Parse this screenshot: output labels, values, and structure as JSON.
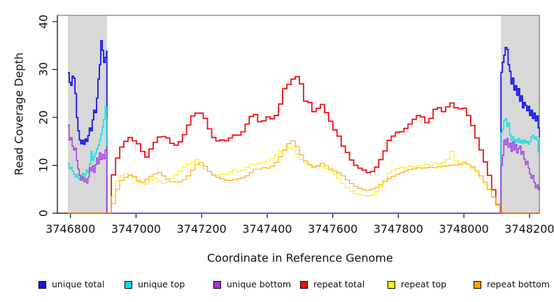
{
  "chart_data": {
    "type": "line",
    "title": "",
    "xlabel": "Coordinate in Reference Genome",
    "ylabel": "Read Coverage Depth",
    "xlim": [
      3746760,
      3748230
    ],
    "ylim": [
      0,
      41.3
    ],
    "x_ticks": [
      3746800,
      3747000,
      3747200,
      3747400,
      3747600,
      3747800,
      3748000,
      3748200
    ],
    "y_ticks": [
      0,
      10,
      20,
      30,
      40
    ],
    "grid": false,
    "legend_position": "bottom",
    "shading_color": "#d8d8d8",
    "shaded_regions": [
      {
        "x0": 3746792,
        "x1": 3746911
      },
      {
        "x0": 3748113,
        "x1": 3748232
      }
    ],
    "series": [
      {
        "name": "unique total",
        "color": "#1414ee",
        "line_width": 1.8,
        "segments": [
          {
            "x0": 3746792,
            "x1": 3746910,
            "values": [
              29.3,
              27.3,
              26.7,
              28.6,
              28.2,
              25.0,
              20.0,
              17.2,
              15.3,
              14.5,
              15.2,
              14.4,
              15.5,
              15.0,
              16.2,
              17.8,
              17.2,
              19.5,
              21.5,
              21.0,
              24.0,
              28.0,
              31.0,
              36.0,
              34.0,
              31.5,
              32.5,
              33.8
            ]
          },
          {
            "x0": 3746911,
            "x1": 3748112,
            "values": [
              0,
              0
            ]
          },
          {
            "x0": 3748113,
            "x1": 3748231,
            "values": [
              29.4,
              31.5,
              33.0,
              34.6,
              34.2,
              31.0,
              29.6,
              27.0,
              28.2,
              25.7,
              26.6,
              24.6,
              26.0,
              23.4,
              24.5,
              22.0,
              23.1,
              22.5,
              21.4,
              22.3,
              20.4,
              21.5,
              19.8,
              20.9,
              19.3,
              20.3,
              17.8,
              15.8
            ]
          }
        ]
      },
      {
        "name": "unique top",
        "color": "#00e0e6",
        "line_width": 1.4,
        "segments": [
          {
            "x0": 3746792,
            "x1": 3746910,
            "values": [
              10.4,
              9.3,
              9.6,
              8.8,
              8.2,
              7.6,
              8.1,
              7.4,
              7.0,
              7.6,
              8.3,
              7.5,
              8.2,
              9.0,
              8.5,
              10.3,
              12.9,
              11.0,
              11.8,
              12.5,
              13.4,
              14.2,
              15.2,
              16.5,
              18.0,
              19.6,
              22.3,
              20.0
            ]
          },
          {
            "x0": 3746911,
            "x1": 3748112,
            "values": [
              0,
              0
            ]
          },
          {
            "x0": 3748113,
            "x1": 3748231,
            "values": [
              16.9,
              17.5,
              19.3,
              19.7,
              18.1,
              18.8,
              16.4,
              15.2,
              16.0,
              14.7,
              15.4,
              14.9,
              15.6,
              14.7,
              15.2,
              14.6,
              15.3,
              14.7,
              15.0,
              14.4,
              15.0,
              15.9,
              16.3,
              15.5,
              15.9,
              15.2,
              13.0,
              11.8
            ]
          }
        ]
      },
      {
        "name": "unique bottom",
        "color": "#a135e0",
        "line_width": 1.4,
        "segments": [
          {
            "x0": 3746792,
            "x1": 3746910,
            "values": [
              18.4,
              15.3,
              15.8,
              14.0,
              13.2,
              13.6,
              11.0,
              9.2,
              7.9,
              6.9,
              7.5,
              6.6,
              7.2,
              6.3,
              7.5,
              9.5,
              8.8,
              9.9,
              8.5,
              10.1,
              11.5,
              10.3,
              12.6,
              11.2,
              12.3,
              11.4,
              13.2,
              13.8
            ]
          },
          {
            "x0": 3746911,
            "x1": 3748112,
            "values": [
              0,
              0
            ]
          },
          {
            "x0": 3748113,
            "x1": 3748231,
            "values": [
              10.0,
              12.1,
              15.3,
              14.3,
              15.6,
              13.8,
              14.6,
              12.9,
              14.9,
              13.2,
              14.3,
              12.6,
              13.5,
              14.0,
              12.3,
              12.9,
              11.3,
              10.2,
              10.8,
              9.4,
              8.2,
              7.3,
              7.9,
              6.4,
              5.3,
              5.9,
              4.9,
              5.6
            ]
          }
        ]
      },
      {
        "name": "repeat total",
        "color": "#f01010",
        "line_width": 1.8,
        "segments": [
          {
            "x0": 3746792,
            "x1": 3746910,
            "values": [
              0,
              0
            ]
          },
          {
            "x0": 3746912,
            "x1": 3748110,
            "values": [
              0,
              8.0,
              11.5,
              13.8,
              15.0,
              15.8,
              15.1,
              14.5,
              12.9,
              11.7,
              13.4,
              14.8,
              15.9,
              16.0,
              15.7,
              14.6,
              14.2,
              14.9,
              16.4,
              18.4,
              20.3,
              20.9,
              20.9,
              19.8,
              17.6,
              15.8,
              15.1,
              15.3,
              15.1,
              15.7,
              16.3,
              16.3,
              17.0,
              18.6,
              20.2,
              20.6,
              19.1,
              19.3,
              20.1,
              19.7,
              20.4,
              22.8,
              26.0,
              26.9,
              28.0,
              28.5,
              27.0,
              23.4,
              23.1,
              21.2,
              21.9,
              22.7,
              21.0,
              19.2,
              17.4,
              16.1,
              14.0,
              12.7,
              11.1,
              10.0,
              9.4,
              9.0,
              8.5,
              8.7,
              9.6,
              11.2,
              13.0,
              15.2,
              16.1,
              16.9,
              17.0,
              17.7,
              18.6,
              19.6,
              20.4,
              20.1,
              18.9,
              19.8,
              21.7,
              22.0,
              21.2,
              22.2,
              23.0,
              22.0,
              21.8,
              21.9,
              20.4,
              18.3,
              15.7,
              13.2,
              10.7,
              7.9,
              4.9,
              1.9,
              0
            ]
          },
          {
            "x0": 3748112,
            "x1": 3748231,
            "values": [
              0,
              0
            ]
          }
        ]
      },
      {
        "name": "repeat top",
        "color": "#ffef00",
        "line_width": 1.1,
        "segments": [
          {
            "x0": 3746792,
            "x1": 3746910,
            "values": [
              0,
              0
            ]
          },
          {
            "x0": 3746912,
            "x1": 3748110,
            "values": [
              0,
              3.5,
              6.8,
              7.8,
              8.3,
              7.8,
              7.5,
              6.5,
              6.2,
              6.1,
              6.8,
              7.3,
              6.7,
              6.2,
              6.6,
              7.2,
              8.0,
              8.8,
              9.6,
              10.2,
              10.6,
              11.2,
              10.1,
              9.2,
              8.7,
              8.2,
              7.9,
              8.1,
              8.1,
              8.6,
              9.0,
              8.7,
              9.0,
              9.6,
              10.3,
              10.1,
              10.5,
              10.6,
              10.8,
              11.4,
              12.1,
              13.0,
              13.3,
              13.9,
              13.4,
              12.4,
              11.2,
              10.5,
              10.2,
              9.8,
              10.0,
              9.7,
              9.4,
              9.0,
              8.2,
              7.2,
              6.2,
              5.3,
              4.6,
              4.1,
              3.9,
              3.7,
              3.6,
              3.8,
              4.5,
              5.6,
              6.9,
              8.3,
              8.9,
              9.3,
              9.6,
              9.4,
              9.8,
              9.6,
              10.0,
              9.8,
              10.2,
              10.0,
              10.4,
              10.2,
              10.6,
              11.2,
              12.9,
              11.0,
              10.3,
              10.7,
              10.2,
              9.5,
              8.6,
              7.4,
              6.1,
              4.7,
              3.3,
              1.9,
              0
            ]
          },
          {
            "x0": 3748112,
            "x1": 3748231,
            "values": [
              0,
              0
            ]
          }
        ]
      },
      {
        "name": "repeat bottom",
        "color": "#ffa500",
        "line_width": 1.1,
        "segments": [
          {
            "x0": 3746792,
            "x1": 3746910,
            "values": [
              0,
              0
            ]
          },
          {
            "x0": 3746912,
            "x1": 3748110,
            "values": [
              0,
              2.0,
              5.0,
              6.8,
              7.5,
              8.0,
              7.7,
              6.8,
              6.5,
              7.1,
              7.7,
              8.2,
              8.5,
              7.8,
              7.1,
              6.6,
              6.5,
              6.6,
              7.0,
              7.8,
              9.0,
              10.2,
              10.6,
              9.8,
              8.7,
              7.9,
              7.5,
              7.2,
              6.9,
              6.8,
              7.0,
              7.2,
              7.4,
              7.8,
              8.5,
              9.2,
              9.2,
              9.5,
              9.4,
              9.8,
              10.6,
              11.8,
              13.1,
              14.5,
              15.1,
              13.9,
              12.2,
              10.9,
              10.1,
              9.6,
              9.8,
              10.4,
              9.9,
              9.2,
              8.8,
              8.4,
              7.8,
              7.0,
              6.2,
              5.6,
              5.2,
              4.9,
              4.8,
              5.0,
              5.4,
              6.0,
              6.6,
              7.2,
              7.7,
              8.1,
              8.5,
              8.8,
              9.1,
              9.3,
              9.5,
              9.4,
              9.5,
              9.6,
              9.5,
              9.7,
              9.8,
              9.9,
              10.1,
              10.0,
              10.2,
              10.5,
              10.2,
              9.7,
              8.9,
              7.8,
              6.5,
              5.0,
              3.4,
              1.7,
              0
            ]
          },
          {
            "x0": 3748112,
            "x1": 3748231,
            "values": [
              0,
              0
            ]
          }
        ]
      }
    ]
  }
}
